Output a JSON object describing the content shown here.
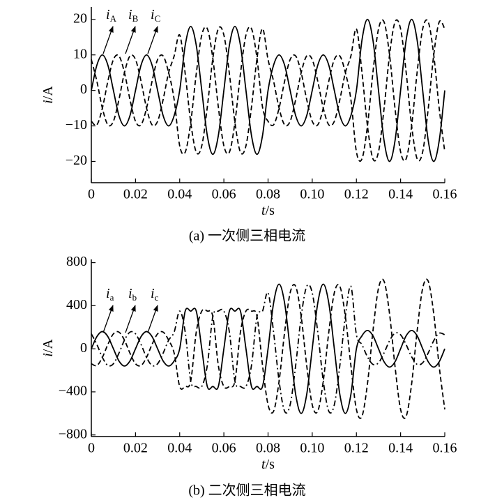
{
  "chart_data": [
    {
      "type": "line",
      "title": "(a) 一次侧三相电流",
      "xlabel": "t/s",
      "ylabel": "i/A",
      "xlim": [
        0,
        0.16
      ],
      "xticks": [
        0,
        0.02,
        0.04,
        0.06,
        0.08,
        {
          "value": 0.1,
          "label": "0.10"
        },
        0.12,
        0.14,
        0.16
      ],
      "ylim": [
        -26,
        23.5
      ],
      "yticks": [
        {
          "value": -20,
          "label": "−20"
        },
        {
          "value": -10,
          "label": "−10"
        },
        0,
        10,
        20
      ],
      "x": [
        0,
        0.0025,
        0.005,
        0.0075,
        0.01,
        0.0125,
        0.015,
        0.0175,
        0.02,
        0.0225,
        0.025,
        0.0275,
        0.03,
        0.0325,
        0.035,
        0.0375,
        0.04,
        0.0425,
        0.045,
        0.0475,
        0.05,
        0.0525,
        0.055,
        0.0575,
        0.06,
        0.0625,
        0.065,
        0.0675,
        0.07,
        0.0725,
        0.075,
        0.0775,
        0.08,
        0.0825,
        0.085,
        0.0875,
        0.09,
        0.0925,
        0.095,
        0.0975,
        0.1,
        0.1025,
        0.105,
        0.1075,
        0.11,
        0.1125,
        0.115,
        0.1175,
        0.12,
        0.1225,
        0.125,
        0.1275,
        0.13,
        0.1325,
        0.135,
        0.1375,
        0.14,
        0.1425,
        0.145,
        0.1475,
        0.15,
        0.1525,
        0.155,
        0.1575,
        0.16
      ],
      "series": [
        {
          "name": "iA",
          "color": "#000000",
          "style": "solid",
          "values": [
            0,
            7.1,
            10,
            7.1,
            0,
            -7.1,
            -10,
            -7.1,
            0,
            7.1,
            10,
            7.1,
            0,
            -7.1,
            -10,
            -7.1,
            0,
            12.7,
            18,
            12.7,
            0,
            -12.7,
            -18,
            -12.7,
            0,
            12.7,
            18,
            12.7,
            0,
            -12.7,
            -18,
            -12.7,
            0,
            7.1,
            10,
            7.1,
            0,
            -7.1,
            -10,
            -7.1,
            0,
            7.1,
            10,
            7.1,
            0,
            -7.1,
            -10,
            -7.1,
            0,
            14.1,
            20,
            14.1,
            0,
            -14.1,
            -20,
            -14.1,
            0,
            14.1,
            20,
            14.1,
            0,
            -14.1,
            -20,
            -14.1,
            0
          ]
        },
        {
          "name": "iB",
          "color": "#000000",
          "style": "dashed",
          "values": [
            -8.7,
            -9.7,
            -5,
            2.6,
            8.7,
            9.7,
            5,
            -2.6,
            -8.7,
            -9.7,
            -5,
            2.6,
            8.7,
            9.7,
            5,
            -2.6,
            -15.6,
            -17.4,
            -9,
            4.7,
            15.6,
            17.4,
            9,
            -4.7,
            -15.6,
            -17.4,
            -9,
            4.7,
            15.6,
            17.4,
            9,
            -4.7,
            -8.7,
            -9.7,
            -5,
            2.6,
            8.7,
            9.7,
            5,
            -2.6,
            -8.7,
            -9.7,
            -5,
            2.6,
            8.7,
            9.7,
            5,
            -2.6,
            -17.3,
            -19.3,
            -10,
            5.2,
            17.3,
            19.3,
            10,
            -5.2,
            -17.3,
            -19.3,
            -10,
            5.2,
            17.3,
            19.3,
            10,
            -5.2,
            -17.3
          ]
        },
        {
          "name": "iC",
          "color": "#000000",
          "style": "dashed",
          "values": [
            8.7,
            2.6,
            -5,
            -9.7,
            -8.7,
            -2.6,
            5,
            9.7,
            8.7,
            2.6,
            -5,
            -9.7,
            -8.7,
            -2.6,
            5,
            9.7,
            15.6,
            4.7,
            -9,
            -17.4,
            -15.6,
            -4.7,
            9,
            17.4,
            15.6,
            4.7,
            -9,
            -17.4,
            -15.6,
            -4.7,
            9,
            17.4,
            8.7,
            2.6,
            -5,
            -9.7,
            -8.7,
            -2.6,
            5,
            9.7,
            8.7,
            2.6,
            -5,
            -9.7,
            -8.7,
            -2.6,
            5,
            9.7,
            17.3,
            5.2,
            -10,
            -19.3,
            -17.3,
            -5.2,
            10,
            19.3,
            17.3,
            5.2,
            -10,
            -19.3,
            -17.3,
            -5.2,
            10,
            19.3,
            17.3
          ]
        }
      ]
    },
    {
      "type": "line",
      "title": "(b) 二次侧三相电流",
      "xlabel": "t/s",
      "ylabel": "i/A",
      "xlim": [
        0,
        0.16
      ],
      "xticks": [
        0,
        0.02,
        0.04,
        0.06,
        0.08,
        {
          "value": 0.1,
          "label": "0.10"
        },
        0.12,
        0.14,
        0.16
      ],
      "ylim": [
        -815,
        830
      ],
      "yticks": [
        {
          "value": -800,
          "label": "−800"
        },
        {
          "value": -400,
          "label": "−400"
        },
        0,
        400,
        800
      ],
      "x": [
        0,
        0.0025,
        0.005,
        0.0075,
        0.01,
        0.0125,
        0.015,
        0.0175,
        0.02,
        0.0225,
        0.025,
        0.0275,
        0.03,
        0.0325,
        0.035,
        0.0375,
        0.04,
        0.0425,
        0.045,
        0.0475,
        0.05,
        0.0525,
        0.055,
        0.0575,
        0.06,
        0.0625,
        0.065,
        0.0675,
        0.07,
        0.0725,
        0.075,
        0.0775,
        0.08,
        0.0825,
        0.085,
        0.0875,
        0.09,
        0.0925,
        0.095,
        0.0975,
        0.1,
        0.1025,
        0.105,
        0.1075,
        0.11,
        0.1125,
        0.115,
        0.1175,
        0.12,
        0.1225,
        0.125,
        0.1275,
        0.13,
        0.1325,
        0.135,
        0.1375,
        0.14,
        0.1425,
        0.145,
        0.1475,
        0.15,
        0.1525,
        0.155,
        0.1575,
        0.16
      ],
      "series": [
        {
          "name": "ia",
          "color": "#000000",
          "style": "solid",
          "values": [
            0,
            113,
            160,
            113,
            0,
            -113,
            -160,
            -113,
            0,
            113,
            160,
            113,
            0,
            -113,
            -160,
            -113,
            0,
            350,
            350,
            350,
            0,
            -350,
            -350,
            -350,
            0,
            350,
            350,
            350,
            0,
            -350,
            -350,
            -350,
            0,
            424,
            600,
            424,
            0,
            -424,
            -600,
            -424,
            0,
            424,
            600,
            424,
            0,
            -424,
            -600,
            -424,
            0,
            120,
            170,
            120,
            0,
            -120,
            -170,
            -120,
            0,
            120,
            170,
            120,
            0,
            -120,
            -170,
            -120,
            0
          ]
        },
        {
          "name": "ib",
          "color": "#000000",
          "style": "dashed",
          "values": [
            -139,
            -155,
            -80,
            41,
            139,
            155,
            80,
            -41,
            -139,
            -155,
            -80,
            41,
            139,
            155,
            80,
            -41,
            -350,
            -350,
            -300,
            155,
            350,
            350,
            300,
            -155,
            -350,
            -350,
            -300,
            155,
            350,
            350,
            300,
            -155,
            -520,
            -580,
            -300,
            155,
            520,
            580,
            300,
            -155,
            -520,
            -580,
            -300,
            155,
            520,
            580,
            300,
            -155,
            -563,
            -628,
            -325,
            168,
            563,
            628,
            325,
            -168,
            -563,
            -628,
            -325,
            168,
            563,
            628,
            325,
            -168,
            -563
          ]
        },
        {
          "name": "ic",
          "color": "#000000",
          "style": "dashdot",
          "values": [
            139,
            41,
            -80,
            -155,
            -139,
            -41,
            80,
            155,
            139,
            41,
            -80,
            -155,
            -139,
            -41,
            80,
            155,
            350,
            155,
            -300,
            -350,
            -350,
            -155,
            300,
            350,
            350,
            155,
            -300,
            -350,
            -350,
            -155,
            300,
            350,
            520,
            155,
            -300,
            -580,
            -520,
            -155,
            300,
            580,
            520,
            155,
            -300,
            -580,
            -520,
            -155,
            300,
            580,
            130,
            39,
            -75,
            -145,
            -130,
            -39,
            75,
            145,
            130,
            39,
            -75,
            -145,
            -130,
            -39,
            75,
            145,
            130
          ]
        }
      ]
    }
  ]
}
